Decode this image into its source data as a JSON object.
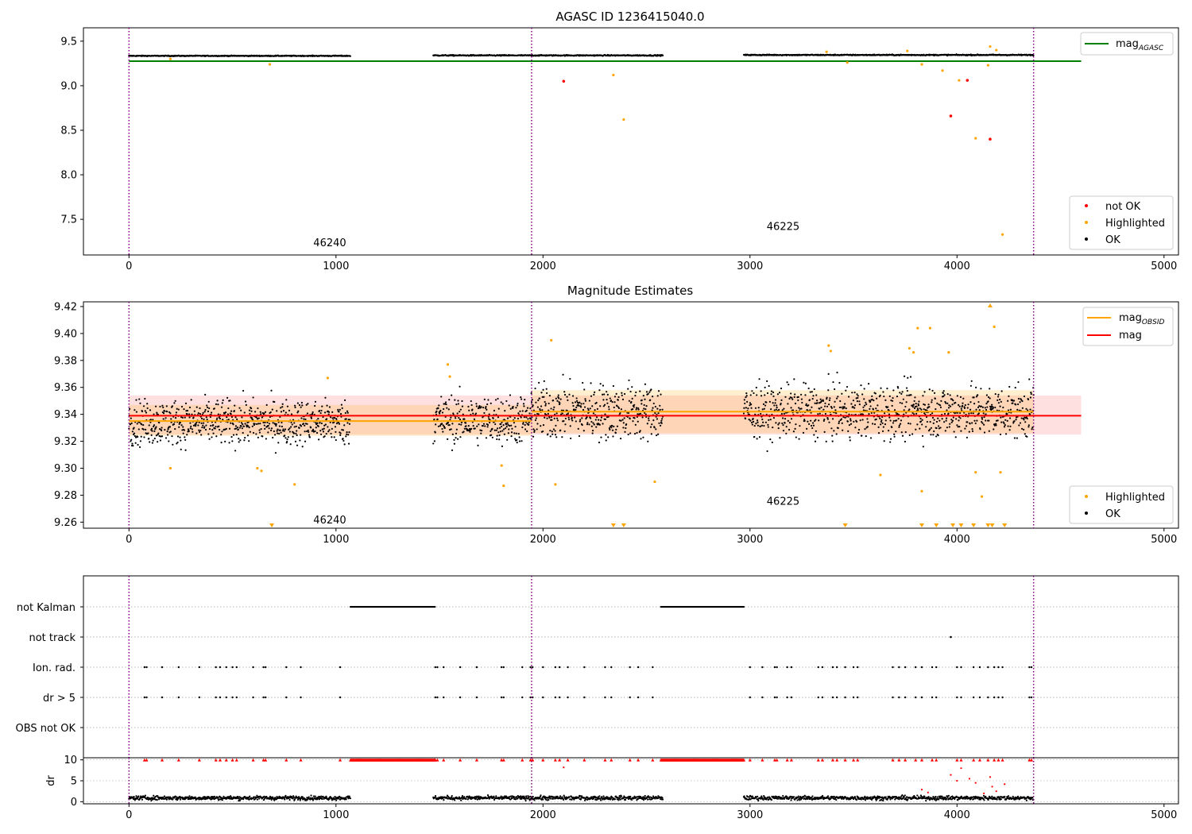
{
  "chart_data": [
    {
      "panel": "top",
      "type": "scatter",
      "title": "AGASC ID 1236415040.0",
      "xlim": [
        -220,
        5070
      ],
      "ylim": [
        7.1,
        9.65
      ],
      "yticks": [
        7.5,
        8.0,
        8.5,
        9.0,
        9.5
      ],
      "ytick_labels": [
        "7.5",
        "8.0",
        "8.5",
        "9.0",
        "9.5"
      ],
      "xticks": [
        0,
        1000,
        2000,
        3000,
        4000,
        5000
      ],
      "xtick_labels": [
        "0",
        "1000",
        "2000",
        "3000",
        "4000",
        "5000"
      ],
      "obs_boundaries": [
        0,
        1945,
        4370
      ],
      "obs_labels": [
        {
          "text": "46240",
          "x": 970,
          "y": 7.2
        },
        {
          "text": "46225",
          "x": 3160,
          "y": 7.38
        }
      ],
      "ok_segments": [
        {
          "start": 0,
          "end": 1070,
          "center": 9.335,
          "spread": 0.01
        },
        {
          "start": 1470,
          "end": 2580,
          "center": 9.34,
          "spread": 0.012
        },
        {
          "start": 2970,
          "end": 4370,
          "center": 9.345,
          "spread": 0.012
        }
      ],
      "lines": [
        {
          "name": "mag",
          "subscript": "AGASC",
          "y": 9.275,
          "x0": 0,
          "x1": 4600,
          "color": "#008000"
        }
      ],
      "highlighted": [
        [
          200,
          9.3
        ],
        [
          680,
          9.24
        ],
        [
          2340,
          9.12
        ],
        [
          2390,
          8.62
        ],
        [
          3470,
          9.26
        ],
        [
          3830,
          9.24
        ],
        [
          3930,
          9.17
        ],
        [
          4010,
          9.06
        ],
        [
          4090,
          8.41
        ],
        [
          4150,
          9.23
        ],
        [
          4160,
          9.44
        ],
        [
          4190,
          9.4
        ],
        [
          4220,
          7.33
        ],
        [
          3760,
          9.39
        ],
        [
          3370,
          9.38
        ]
      ],
      "not_ok": [
        [
          2100,
          9.05
        ],
        [
          3970,
          8.66
        ],
        [
          4050,
          9.06
        ],
        [
          4160,
          8.4
        ]
      ],
      "legend_lines": [
        {
          "label": "mag",
          "subscript": "AGASC",
          "color": "#008000"
        }
      ],
      "legend_points": [
        {
          "label": "not OK",
          "color": "#ff0000"
        },
        {
          "label": "Highlighted",
          "color": "#ffa500"
        },
        {
          "label": "OK",
          "color": "#000000"
        }
      ]
    },
    {
      "panel": "middle",
      "type": "scatter",
      "title": "Magnitude Estimates",
      "xlim": [
        -220,
        5070
      ],
      "ylim": [
        9.2555,
        9.4235
      ],
      "yticks": [
        9.26,
        9.28,
        9.3,
        9.32,
        9.34,
        9.36,
        9.38,
        9.4,
        9.42
      ],
      "ytick_labels": [
        "9.26",
        "9.28",
        "9.30",
        "9.32",
        "9.34",
        "9.36",
        "9.38",
        "9.40",
        "9.42"
      ],
      "xticks": [
        0,
        1000,
        2000,
        3000,
        4000,
        5000
      ],
      "xtick_labels": [
        "0",
        "1000",
        "2000",
        "3000",
        "4000",
        "5000"
      ],
      "obs_boundaries": [
        0,
        1945,
        4370
      ],
      "obs_labels": [
        {
          "text": "46240",
          "x": 970,
          "y": 9.259
        },
        {
          "text": "46225",
          "x": 3160,
          "y": 9.273
        }
      ],
      "ok_segments": [
        {
          "start": 0,
          "end": 1070,
          "center": 9.334,
          "spread": 0.012
        },
        {
          "start": 1470,
          "end": 1945,
          "center": 9.336,
          "spread": 0.013
        },
        {
          "start": 1945,
          "end": 2580,
          "center": 9.342,
          "spread": 0.015
        },
        {
          "start": 2970,
          "end": 4370,
          "center": 9.342,
          "spread": 0.014
        }
      ],
      "mag_obsid": [
        {
          "x0": 0,
          "x1": 1945,
          "y": 9.335,
          "lo": 9.324,
          "hi": 9.347
        },
        {
          "x0": 1945,
          "x1": 4370,
          "y": 9.342,
          "lo": 9.326,
          "hi": 9.358
        }
      ],
      "mag": {
        "y": 9.339,
        "lo": 9.325,
        "hi": 9.354,
        "x0": 0,
        "x1": 4600
      },
      "highlighted": [
        [
          200,
          9.3
        ],
        [
          620,
          9.3
        ],
        [
          640,
          9.298
        ],
        [
          800,
          9.288
        ],
        [
          960,
          9.367
        ],
        [
          1540,
          9.377
        ],
        [
          1550,
          9.368
        ],
        [
          1800,
          9.302
        ],
        [
          1810,
          9.287
        ],
        [
          2040,
          9.395
        ],
        [
          2060,
          9.288
        ],
        [
          2540,
          9.29
        ],
        [
          3380,
          9.391
        ],
        [
          3390,
          9.387
        ],
        [
          3630,
          9.295
        ],
        [
          3770,
          9.389
        ],
        [
          3790,
          9.386
        ],
        [
          3810,
          9.404
        ],
        [
          3830,
          9.283
        ],
        [
          3870,
          9.404
        ],
        [
          3960,
          9.386
        ],
        [
          4090,
          9.297
        ],
        [
          4120,
          9.279
        ],
        [
          4180,
          9.405
        ],
        [
          4210,
          9.297
        ]
      ],
      "highlighted_below": [
        690,
        2340,
        2390,
        3460,
        3830,
        3900,
        3980,
        4020,
        4080,
        4150,
        4170,
        4230
      ],
      "highlighted_above": [
        4160
      ],
      "legend_lines": [
        {
          "label": "mag",
          "subscript": "OBSID",
          "color": "#ffa500"
        },
        {
          "label": "mag",
          "subscript": "",
          "color": "#ff0000"
        }
      ],
      "legend_points": [
        {
          "label": "Highlighted",
          "color": "#ffa500"
        },
        {
          "label": "OK",
          "color": "#000000"
        }
      ]
    },
    {
      "panel": "flags",
      "type": "scatter",
      "xlim": [
        -220,
        5070
      ],
      "categories": [
        "not Kalman",
        "not track",
        "Ion. rad.",
        "dr > 5",
        "OBS not OK"
      ],
      "obs_boundaries": [
        0,
        1945,
        4370
      ],
      "not_kalman_ranges": [
        [
          1070,
          1480
        ],
        [
          2570,
          2970
        ]
      ],
      "not_track": [
        3970
      ],
      "ion_rad": [
        75,
        85,
        160,
        240,
        340,
        420,
        440,
        470,
        500,
        520,
        600,
        650,
        660,
        760,
        830,
        1020,
        1480,
        1490,
        1520,
        1600,
        1680,
        1800,
        1810,
        1900,
        1940,
        1950,
        2000,
        2060,
        2080,
        2120,
        2200,
        2300,
        2330,
        2420,
        2460,
        2530,
        3000,
        3060,
        3120,
        3130,
        3180,
        3200,
        3330,
        3350,
        3400,
        3420,
        3460,
        3500,
        3520,
        3690,
        3720,
        3750,
        3800,
        3830,
        3880,
        3900,
        4000,
        4020,
        4080,
        4110,
        4150,
        4180,
        4200,
        4220,
        4350,
        4360
      ]
    },
    {
      "panel": "dr",
      "type": "scatter",
      "xlim": [
        -220,
        5070
      ],
      "ylim": [
        -0.5,
        10.5
      ],
      "ylabel": "dr",
      "yticks": [
        0,
        5,
        10
      ],
      "ytick_labels": [
        "0",
        "5",
        "10"
      ],
      "xticks": [
        0,
        1000,
        2000,
        3000,
        4000,
        5000
      ],
      "xtick_labels": [
        "0",
        "1000",
        "2000",
        "3000",
        "4000",
        "5000"
      ],
      "obs_boundaries": [
        0,
        1945,
        4370
      ],
      "capped_value": 10,
      "red_points": [
        [
          2100,
          8.2
        ],
        [
          3830,
          2.9
        ],
        [
          3860,
          2.2
        ],
        [
          3970,
          6.4
        ],
        [
          4000,
          5.0
        ],
        [
          4020,
          8.0
        ],
        [
          4060,
          5.5
        ],
        [
          4090,
          4.5
        ],
        [
          4130,
          2.0
        ],
        [
          4160,
          5.9
        ],
        [
          4170,
          3.6
        ],
        [
          4190,
          2.5
        ],
        [
          4230,
          4.2
        ]
      ]
    }
  ]
}
